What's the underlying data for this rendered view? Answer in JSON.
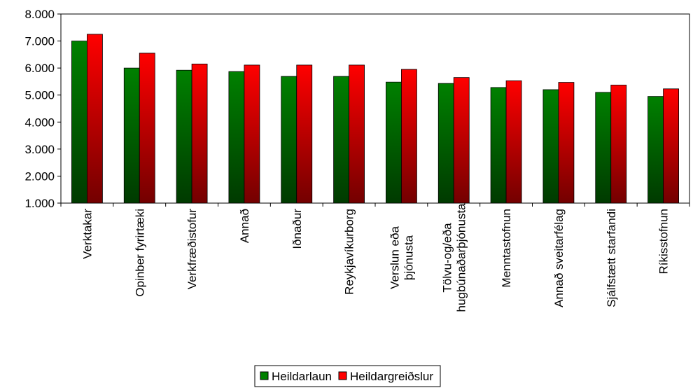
{
  "chart_data": {
    "type": "bar",
    "categories": [
      "Verktakar",
      "Opinber fyrirtæki",
      "Verkfræðistofur",
      "Annað",
      "Iðnaður",
      "Reykjavíkurborg",
      "Verslun eða\nþjónusta",
      "Tölvu-og/eða\nhugbúnaðarþjónusta",
      "Menntastofnun",
      "Annað sveitarfélag",
      "Sjálfstætt starfandi",
      "Ríkisstofnun"
    ],
    "series": [
      {
        "name": "Heildarlaun",
        "color": "#008000",
        "values": [
          7000,
          6000,
          5920,
          5870,
          5690,
          5690,
          5480,
          5430,
          5280,
          5200,
          5100,
          4950
        ]
      },
      {
        "name": "Heildargreiðslur",
        "color": "#ff0000",
        "values": [
          7250,
          6550,
          6150,
          6110,
          6110,
          6110,
          5950,
          5650,
          5530,
          5470,
          5370,
          5230
        ]
      }
    ],
    "ylim": [
      1000,
      8000
    ],
    "yticks": [
      {
        "value": 1000,
        "label": "1.000"
      },
      {
        "value": 2000,
        "label": "2.000"
      },
      {
        "value": 3000,
        "label": "3.000"
      },
      {
        "value": 4000,
        "label": "4.000"
      },
      {
        "value": 5000,
        "label": "5.000"
      },
      {
        "value": 6000,
        "label": "6.000"
      },
      {
        "value": 7000,
        "label": "7.000"
      },
      {
        "value": 8000,
        "label": "8.000"
      }
    ],
    "legend": "bottom"
  }
}
